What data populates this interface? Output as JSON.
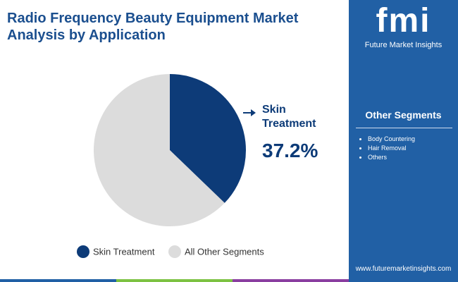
{
  "chart_data": {
    "type": "pie",
    "title": "Radio Frequency Beauty Equipment Market Analysis by Application",
    "categories": [
      "Skin Treatment",
      "All Other Segments"
    ],
    "values": [
      37.2,
      62.8
    ],
    "value_labels": [
      "37.2%",
      null
    ],
    "colors": [
      "#0d3b78",
      "#dcdcdc"
    ],
    "legend": "bottom"
  },
  "logo": {
    "mark": "fmi",
    "name": "Future Market Insights"
  },
  "side_panel": {
    "title": "Other Segments",
    "items": [
      "Body Countering",
      "Hair Removal",
      "Others"
    ]
  },
  "footer": {
    "url": "www.futuremarketinsights.com"
  }
}
